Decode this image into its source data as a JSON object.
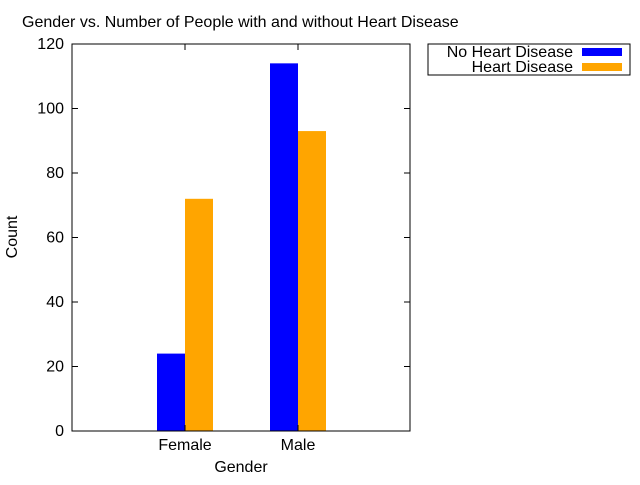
{
  "chart_data": {
    "type": "bar",
    "title": "Gender vs. Number of People with and without Heart Disease",
    "xlabel": "Gender",
    "ylabel": "Count",
    "categories": [
      "Female",
      "Male"
    ],
    "series": [
      {
        "name": "No Heart Disease",
        "values": [
          24,
          114
        ],
        "color": "#0000ff"
      },
      {
        "name": "Heart Disease",
        "values": [
          72,
          93
        ],
        "color": "#ffa500"
      }
    ],
    "ylim": [
      0,
      120
    ],
    "yticks": [
      0,
      20,
      40,
      60,
      80,
      100,
      120
    ],
    "ytick_labels": [
      "0",
      "20",
      "40",
      "60",
      "80",
      "100",
      "120"
    ],
    "grid": false,
    "legend": "top-right, outside plot"
  }
}
